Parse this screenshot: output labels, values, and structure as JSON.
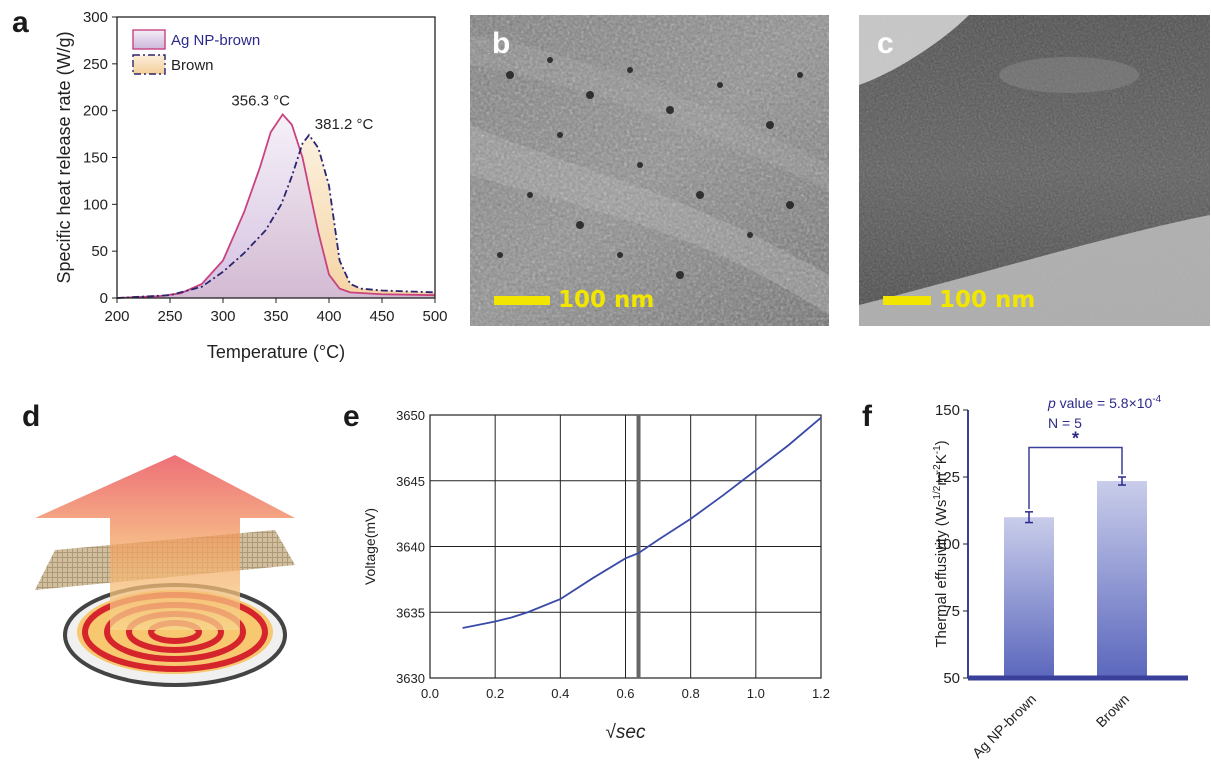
{
  "panels": {
    "a": {
      "label": "a",
      "chart_data": {
        "type": "area",
        "xlabel": "Temperature (°C)",
        "ylabel": "Specific heat release rate (W/g)",
        "xlim": [
          200,
          500
        ],
        "ylim": [
          0,
          300
        ],
        "xticks": [
          200,
          250,
          300,
          350,
          400,
          450,
          500
        ],
        "yticks": [
          0,
          50,
          100,
          150,
          200,
          250,
          300
        ],
        "legend_position": "top-left",
        "series": [
          {
            "name": "Ag NP-brown",
            "color": "#c8437f",
            "fill": "#cdb6dc",
            "x": [
              200,
              240,
              260,
              280,
              300,
              320,
              335,
              345,
              356.3,
              365,
              375,
              390,
              400,
              410,
              420,
              450,
              500
            ],
            "y": [
              0,
              2,
              5,
              15,
              40,
              92,
              140,
              177,
              196,
              185,
              150,
              70,
              25,
              10,
              6,
              4,
              3
            ],
            "peak_label": "356.3 °C"
          },
          {
            "name": "Brown",
            "color": "#2b2470",
            "fill": "#f4cf9a",
            "dash": "7,3,2,3",
            "x": [
              200,
              250,
              280,
              300,
              320,
              340,
              355,
              365,
              375,
              381.2,
              390,
              400,
              410,
              420,
              430,
              450,
              500
            ],
            "y": [
              0,
              3,
              12,
              28,
              48,
              72,
              100,
              130,
              165,
              174,
              160,
              120,
              40,
              15,
              10,
              8,
              6
            ],
            "peak_label": "381.2 °C"
          }
        ]
      }
    },
    "b": {
      "label": "b",
      "scale_text": "100 nm"
    },
    "c": {
      "label": "c",
      "scale_text": "100 nm"
    },
    "d": {
      "label": "d"
    },
    "e": {
      "label": "e",
      "chart_data": {
        "type": "line",
        "xlabel": "√sec",
        "ylabel": "Voltage(mV)",
        "xlim": [
          0.0,
          1.2
        ],
        "ylim": [
          3630,
          3650
        ],
        "xticks": [
          "0.0",
          "0.2",
          "0.4",
          "0.6",
          "0.8",
          "1.0",
          "1.2"
        ],
        "yticks": [
          "3630",
          "3635",
          "3640",
          "3645",
          "3650"
        ],
        "grid": true,
        "vline_x": 0.64,
        "series": [
          {
            "name": "",
            "color": "#3a4aa8",
            "x": [
              0.1,
              0.2,
              0.25,
              0.3,
              0.4,
              0.5,
              0.6,
              0.64,
              0.7,
              0.8,
              0.9,
              1.0,
              1.1,
              1.2
            ],
            "y": [
              3633.8,
              3634.3,
              3634.6,
              3635.0,
              3636.0,
              3637.6,
              3639.1,
              3639.5,
              3640.5,
              3642.1,
              3643.9,
              3645.8,
              3647.7,
              3649.8
            ]
          }
        ]
      }
    },
    "f": {
      "label": "f",
      "chart_data": {
        "type": "bar",
        "ylabel": "Thermal effusivity (Ws¹ᐟ²m⁻²K⁻¹)",
        "ylabel_parts": [
          "Thermal effusivity (Ws",
          "1/2",
          "m",
          "-2",
          "K",
          "-1",
          ")"
        ],
        "ylim": [
          50,
          150
        ],
        "yticks": [
          50,
          75,
          100,
          125,
          150
        ],
        "categories": [
          "Ag NP-brown",
          "Brown"
        ],
        "values": [
          110,
          123.5
        ],
        "errors": [
          2,
          1.5
        ],
        "color": "#5b67bd",
        "annotation_p": "p",
        "annotation_value": " value = 5.8×10",
        "annotation_exp": "-4",
        "annotation_n": "N = 5",
        "significance": "*"
      }
    }
  }
}
